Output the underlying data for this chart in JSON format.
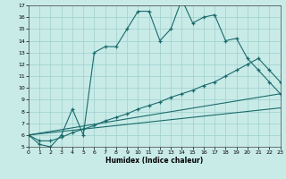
{
  "title": "",
  "xlabel": "Humidex (Indice chaleur)",
  "background_color": "#c8ebe8",
  "grid_color": "#9ecfcc",
  "line_color": "#1a6b6b",
  "xlim": [
    0,
    23
  ],
  "ylim": [
    5,
    17
  ],
  "xticks": [
    0,
    1,
    2,
    3,
    4,
    5,
    6,
    7,
    8,
    9,
    10,
    11,
    12,
    13,
    14,
    15,
    16,
    17,
    18,
    19,
    20,
    21,
    22,
    23
  ],
  "yticks": [
    5,
    6,
    7,
    8,
    9,
    10,
    11,
    12,
    13,
    14,
    15,
    16,
    17
  ],
  "series": [
    {
      "x": [
        0,
        1,
        2,
        3,
        4,
        5,
        6,
        7,
        8,
        9,
        10,
        11,
        12,
        13,
        14,
        15,
        16,
        17,
        18,
        19,
        20,
        21,
        22,
        23
      ],
      "y": [
        6.0,
        5.2,
        5.0,
        6.0,
        8.2,
        6.0,
        13.0,
        13.5,
        13.5,
        15.0,
        16.5,
        16.5,
        14.0,
        15.0,
        17.5,
        15.5,
        16.0,
        16.2,
        14.0,
        14.2,
        12.5,
        11.5,
        10.5,
        9.5
      ],
      "has_marker": true
    },
    {
      "x": [
        0,
        1,
        2,
        3,
        4,
        5,
        6,
        7,
        8,
        9,
        10,
        11,
        12,
        13,
        14,
        15,
        16,
        17,
        18,
        19,
        20,
        21,
        22,
        23
      ],
      "y": [
        6.0,
        5.5,
        5.5,
        5.8,
        6.2,
        6.5,
        6.8,
        7.2,
        7.5,
        7.8,
        8.2,
        8.5,
        8.8,
        9.2,
        9.5,
        9.8,
        10.2,
        10.5,
        11.0,
        11.5,
        12.0,
        12.5,
        11.5,
        10.5
      ],
      "has_marker": true
    },
    {
      "x": [
        0,
        23
      ],
      "y": [
        6.0,
        9.5
      ],
      "has_marker": false
    },
    {
      "x": [
        0,
        23
      ],
      "y": [
        6.0,
        8.3
      ],
      "has_marker": false
    }
  ]
}
